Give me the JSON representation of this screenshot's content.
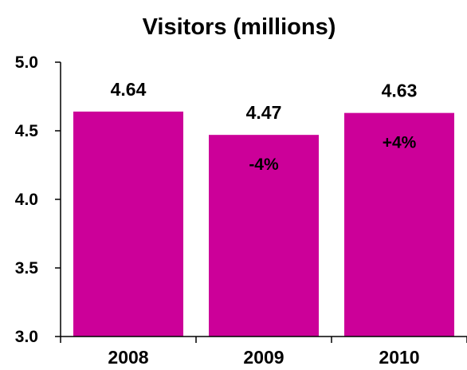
{
  "chart_data": {
    "type": "bar",
    "title": "Visitors (millions)",
    "categories": [
      "2008",
      "2009",
      "2010"
    ],
    "values": [
      4.64,
      4.47,
      4.63
    ],
    "value_labels": [
      "4.64",
      "4.47",
      "4.63"
    ],
    "change_labels": [
      "",
      "-4%",
      "+4%"
    ],
    "ylim": [
      3.0,
      5.0
    ],
    "yticks": [
      "3.0",
      "3.5",
      "4.0",
      "4.5",
      "5.0"
    ],
    "bar_color": "#cc0099",
    "grid": false,
    "legend": "none"
  }
}
